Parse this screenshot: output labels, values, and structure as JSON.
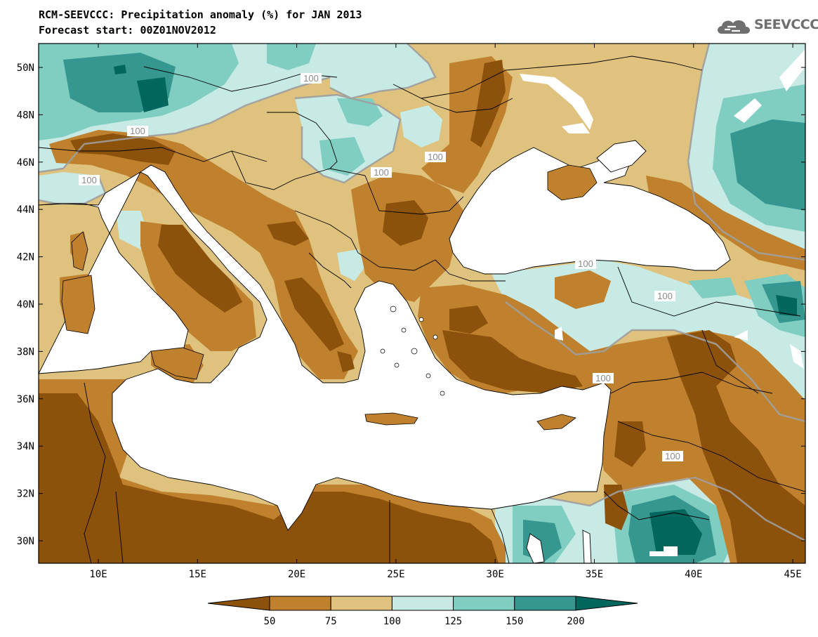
{
  "title": "RCM-SEEVCCC: Precipitation anomaly (%) for JAN 2013",
  "subtitle": "Forecast start: 00Z01NOV2012",
  "logo": {
    "text": "SEEVCCC",
    "icon": "cloud-logo-icon"
  },
  "colors": {
    "lt50": "#8c510a",
    "50-75": "#bf812d",
    "75-100": "#dfc27d",
    "100-125": "#c7eae5",
    "125-150": "#80cdc1",
    "150-200": "#35978f",
    "gt200": "#01665e",
    "contour": "#9e9e9e",
    "sea": "#ffffff"
  },
  "map": {
    "lat_ticks": [
      "50N",
      "48N",
      "46N",
      "44N",
      "42N",
      "40N",
      "38N",
      "36N",
      "34N",
      "32N",
      "30N"
    ],
    "lon_ticks": [
      "10E",
      "15E",
      "20E",
      "25E",
      "30E",
      "35E",
      "40E",
      "45E"
    ],
    "contour_labels": [
      "100",
      "100",
      "100",
      "100",
      "100",
      "100",
      "100",
      "100",
      "100"
    ]
  },
  "colorbar": {
    "labels": [
      "50",
      "75",
      "100",
      "125",
      "150",
      "200"
    ]
  }
}
